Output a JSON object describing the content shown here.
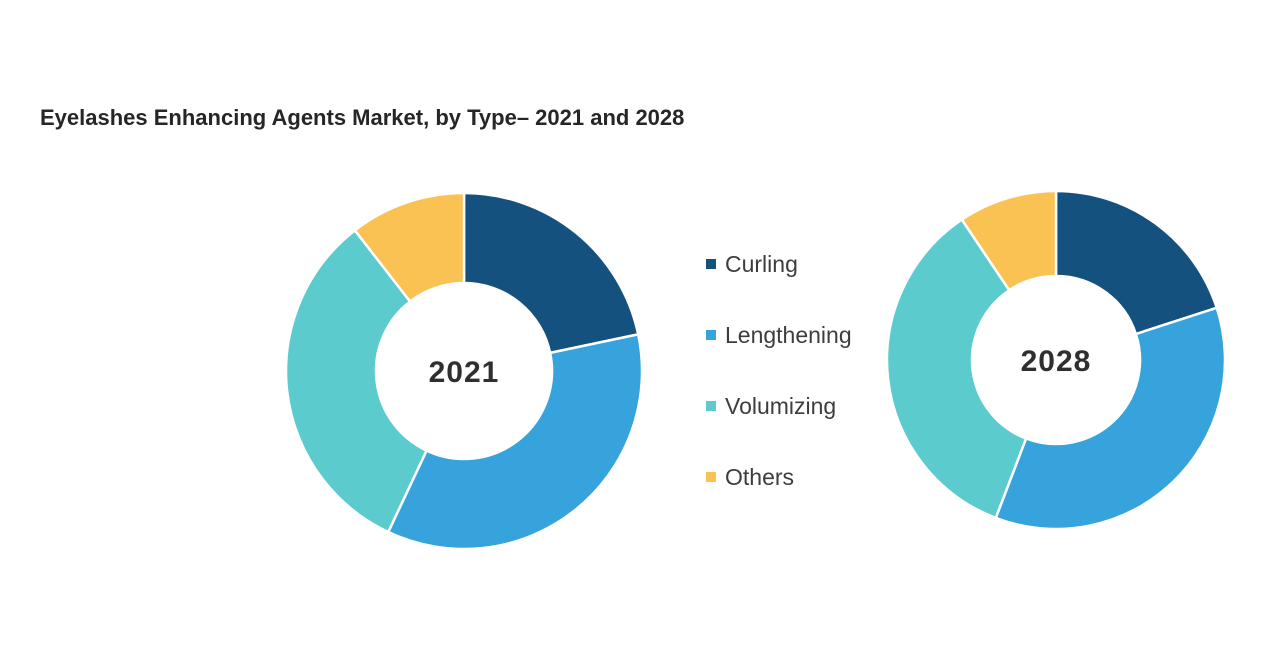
{
  "header": {
    "title": "Eyelashes Enhancing Agents Market, by Type– 2021 and 2028"
  },
  "legend": {
    "items": [
      {
        "label": "Curling",
        "color": "#15517e"
      },
      {
        "label": "Lengthening",
        "color": "#36a3dd"
      },
      {
        "label": "Volumizing",
        "color": "#5ccbce"
      },
      {
        "label": "Others",
        "color": "#fac153"
      }
    ]
  },
  "chart_data": [
    {
      "type": "pie",
      "subtype": "donut",
      "center_label": "2021",
      "categories": [
        "Curling",
        "Lengthening",
        "Volumizing",
        "Others"
      ],
      "values": [
        21.7,
        35.3,
        32.5,
        10.5
      ],
      "note": "percent shares estimated from arc angles; no value labels shown in image",
      "start_angle_deg": 0,
      "direction": "clockwise",
      "slice_colors": [
        "#15517e",
        "#36a3dd",
        "#5ccbce",
        "#fac153"
      ],
      "legend_position": "center, between the two donuts"
    },
    {
      "type": "pie",
      "subtype": "donut",
      "center_label": "2028",
      "categories": [
        "Curling",
        "Lengthening",
        "Volumizing",
        "Others"
      ],
      "values": [
        20.0,
        35.8,
        34.8,
        9.4
      ],
      "note": "percent shares estimated from arc angles; no value labels shown in image",
      "start_angle_deg": 0,
      "direction": "clockwise",
      "slice_colors": [
        "#15517e",
        "#36a3dd",
        "#5ccbce",
        "#fac153"
      ]
    }
  ]
}
